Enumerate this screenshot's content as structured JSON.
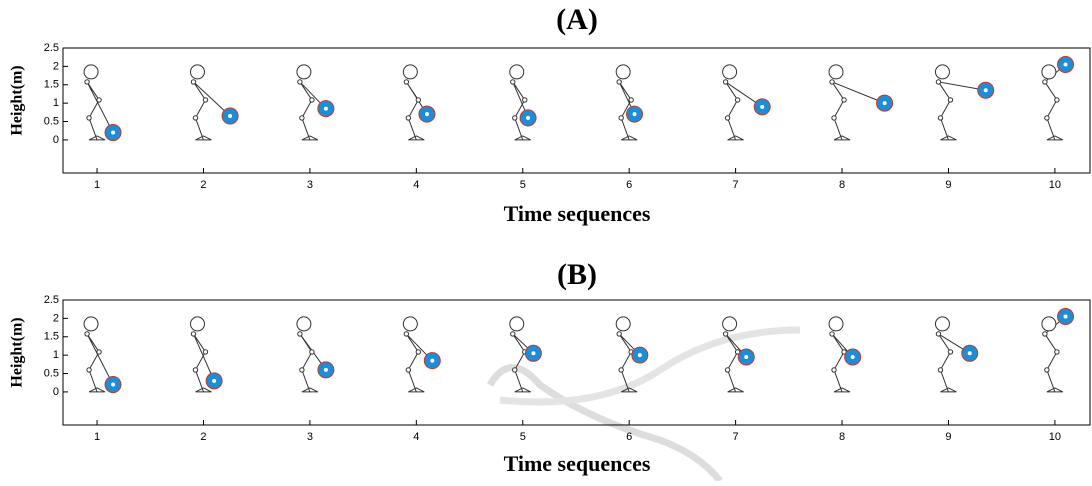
{
  "chart_data": [
    {
      "type": "scatter",
      "title": "(A)",
      "xlabel": "Time sequences",
      "ylabel": "Height(m)",
      "x": [
        1.15,
        2.25,
        3.15,
        4.1,
        5.05,
        6.05,
        7.25,
        8.4,
        9.35,
        10.1
      ],
      "values": [
        0.2,
        0.65,
        0.85,
        0.7,
        0.6,
        0.7,
        0.9,
        1.0,
        1.35,
        2.05
      ],
      "color": "#1f8dd6",
      "xlim": [
        0.68,
        10.33
      ],
      "ylim": [
        -0.9,
        2.5
      ],
      "xticks": [
        1,
        2,
        3,
        4,
        5,
        6,
        7,
        8,
        9,
        10
      ],
      "yticks": [
        0,
        0.5,
        1,
        1.5,
        2,
        2.5
      ]
    },
    {
      "type": "scatter",
      "title": "(B)",
      "xlabel": "Time sequences",
      "ylabel": "Height(m)",
      "x": [
        1.15,
        2.1,
        3.15,
        4.15,
        5.1,
        6.1,
        7.1,
        8.1,
        9.2,
        10.1
      ],
      "values": [
        0.2,
        0.3,
        0.6,
        0.85,
        1.05,
        1.0,
        0.95,
        0.95,
        1.05,
        2.05
      ],
      "color": "#1f8dd6",
      "xlim": [
        0.68,
        10.33
      ],
      "ylim": [
        -0.9,
        2.5
      ],
      "xticks": [
        1,
        2,
        3,
        4,
        5,
        6,
        7,
        8,
        9,
        10
      ],
      "yticks": [
        0,
        0.5,
        1,
        1.5,
        2,
        2.5
      ]
    }
  ]
}
